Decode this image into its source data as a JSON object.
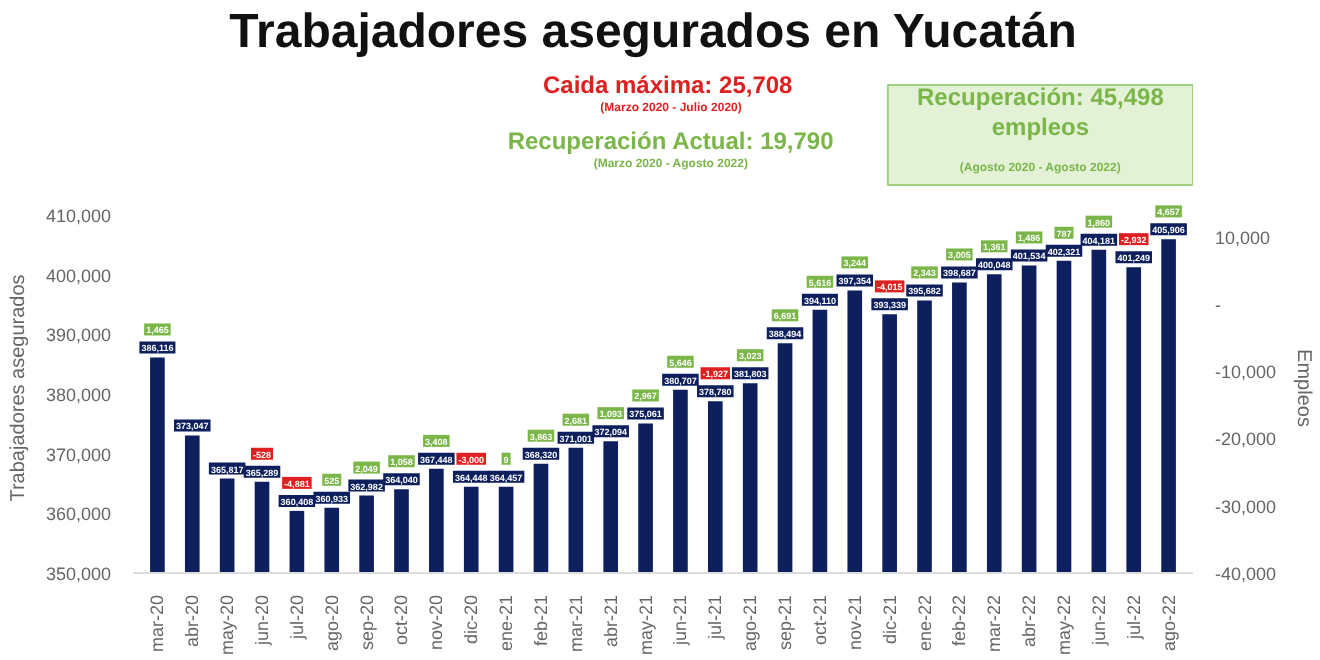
{
  "chart_data": {
    "type": "bar",
    "title": "Trabajadores asegurados en Yucatán",
    "ylabel": "Trabajadores asegurados",
    "y2label": "Empleos",
    "categories": [
      "mar-20",
      "abr-20",
      "may-20",
      "jun-20",
      "jul-20",
      "ago-20",
      "sep-20",
      "oct-20",
      "nov-20",
      "dic-20",
      "ene-21",
      "feb-21",
      "mar-21",
      "abr-21",
      "may-21",
      "jun-21",
      "jul-21",
      "ago-21",
      "sep-21",
      "oct-21",
      "nov-21",
      "dic-21",
      "ene-22",
      "feb-22",
      "mar-22",
      "abr-22",
      "may-22",
      "jun-22",
      "jul-22",
      "ago-22"
    ],
    "values": [
      386116,
      373047,
      365817,
      365289,
      360408,
      360933,
      362982,
      364040,
      367448,
      364448,
      364457,
      368320,
      371001,
      372094,
      375061,
      380707,
      378780,
      381803,
      388494,
      394110,
      397354,
      393339,
      395682,
      398687,
      400048,
      401534,
      402321,
      404181,
      401249,
      405906
    ],
    "color": "#0d1f5c",
    "value_labels": [
      "386,116",
      "373,047",
      "365,817",
      "365,289",
      "360,408",
      "360,933",
      "362,982",
      "364,040",
      "367,448",
      "364,448",
      "364,457",
      "368,320",
      "371,001",
      "372,094",
      "375,061",
      "380,707",
      "378,780",
      "381,803",
      "388,494",
      "394,110",
      "397,354",
      "393,339",
      "395,682",
      "398,687",
      "400,048",
      "401,534",
      "402,321",
      "404,181",
      "401,249",
      "405,906"
    ],
    "ylim": [
      350000,
      412000
    ],
    "yticks": [
      {
        "value": 350000,
        "label": "350,000"
      },
      {
        "value": 360000,
        "label": "360,000"
      },
      {
        "value": 370000,
        "label": "370,000"
      },
      {
        "value": 380000,
        "label": "380,000"
      },
      {
        "value": 390000,
        "label": "390,000"
      },
      {
        "value": 400000,
        "label": "400,000"
      },
      {
        "value": 410000,
        "label": "410,000"
      }
    ],
    "y2lim": [
      -40000,
      15000
    ],
    "y2ticks": [
      {
        "value": -40000,
        "label": "-40,000"
      },
      {
        "value": -30000,
        "label": "-30,000"
      },
      {
        "value": -20000,
        "label": "-20,000"
      },
      {
        "value": -10000,
        "label": "-10,000"
      },
      {
        "value": 0,
        "label": "-"
      },
      {
        "value": 10000,
        "label": "10,000"
      }
    ],
    "grid": false,
    "annotations": [
      "Caida máxima:  25,708",
      "(Marzo 2020 - Julio 2020)",
      "Recuperación Actual: 19,790",
      "(Marzo 2020 - Agosto 2022)",
      "Recuperación: 45,498 empleos",
      "(Agosto 2020 - Agosto 2022)",
      {
        "text": "1,465",
        "x": "mar-20",
        "y": 386116
      },
      {
        "text": "-528",
        "x": "jun-20",
        "y": 365289
      },
      {
        "text": "-4,881",
        "x": "jul-20",
        "y": 360408
      },
      {
        "text": "525",
        "x": "ago-20",
        "y": 360933
      },
      {
        "text": "2,049",
        "x": "sep-20",
        "y": 362982
      },
      {
        "text": "1,058",
        "x": "oct-20",
        "y": 364040
      },
      {
        "text": "3,408",
        "x": "nov-20",
        "y": 367448
      },
      {
        "text": "-3,000",
        "x": "dic-20",
        "y": 364448
      },
      {
        "text": "9",
        "x": "ene-21",
        "y": 364457
      },
      {
        "text": "3,863",
        "x": "feb-21",
        "y": 368320
      },
      {
        "text": "2,681",
        "x": "mar-21",
        "y": 371001
      },
      {
        "text": "1,093",
        "x": "abr-21",
        "y": 372094
      },
      {
        "text": "2,967",
        "x": "may-21",
        "y": 375061
      },
      {
        "text": "5,646",
        "x": "jun-21",
        "y": 380707
      },
      {
        "text": "-1,927",
        "x": "jul-21",
        "y": 378780
      },
      {
        "text": "3,023",
        "x": "ago-21",
        "y": 381803
      },
      {
        "text": "6,691",
        "x": "sep-21",
        "y": 388494
      },
      {
        "text": "5,616",
        "x": "oct-21",
        "y": 394110
      },
      {
        "text": "3,244",
        "x": "nov-21",
        "y": 397354
      },
      {
        "text": "-4,015",
        "x": "dic-21",
        "y": 393339
      },
      {
        "text": "2,343",
        "x": "ene-22",
        "y": 395682
      },
      {
        "text": "3,005",
        "x": "feb-22",
        "y": 398687
      },
      {
        "text": "1,361",
        "x": "mar-22",
        "y": 400048
      },
      {
        "text": "1,486",
        "x": "abr-22",
        "y": 401534
      },
      {
        "text": "787",
        "x": "may-22",
        "y": 402321
      },
      {
        "text": "1,860",
        "x": "jun-22",
        "y": 404181
      },
      {
        "text": "-2,932",
        "x": "jul-22",
        "y": 401249
      },
      {
        "text": "4,657",
        "x": "ago-22",
        "y": 405906
      }
    ]
  }
}
